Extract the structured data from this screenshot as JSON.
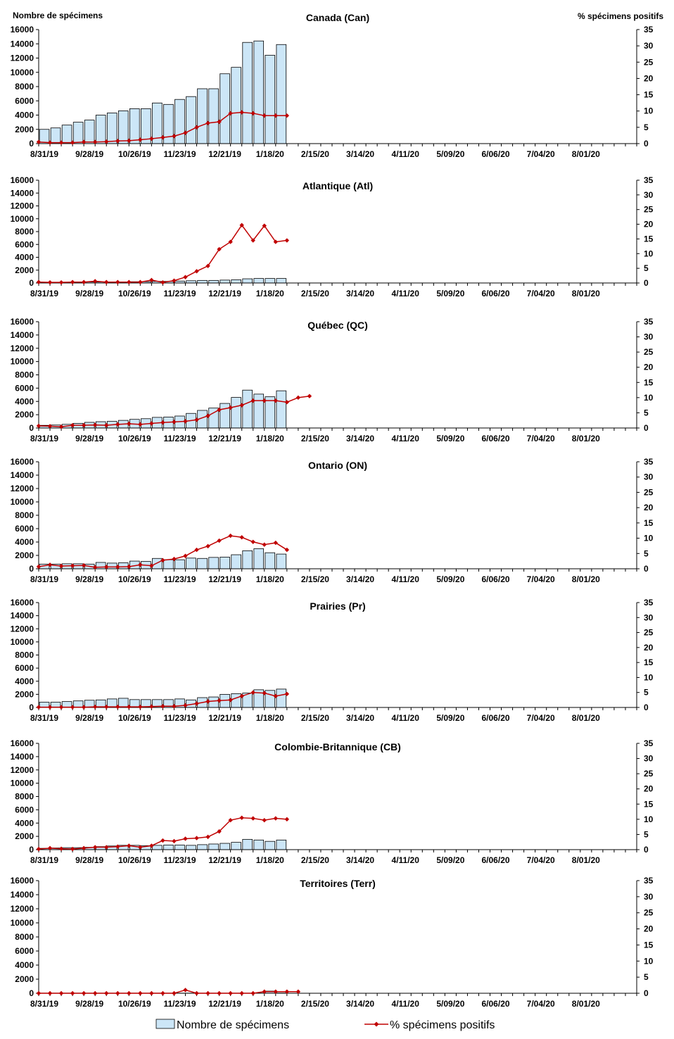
{
  "left_axis_label": "Nombre de spécimens",
  "right_axis_label": "% spécimens positifs",
  "legend": {
    "bars": "Nombre de spécimens",
    "line": "% spécimens positifs"
  },
  "colors": {
    "bar_fill": "#cce6f7",
    "bar_stroke": "#000000",
    "line": "#c00000",
    "axis": "#000000"
  },
  "x_tick_labels": [
    "8/31/19",
    "9/28/19",
    "10/26/19",
    "11/23/19",
    "12/21/19",
    "1/18/20",
    "2/15/20",
    "3/14/20",
    "4/11/20",
    "5/09/20",
    "6/06/20",
    "7/04/20",
    "8/01/20"
  ],
  "y_left_ticks": [
    0,
    2000,
    4000,
    6000,
    8000,
    10000,
    12000,
    14000,
    16000
  ],
  "y_right_ticks": [
    0,
    5,
    10,
    15,
    20,
    25,
    30,
    35
  ],
  "chart_data": [
    {
      "type": "bar+line",
      "title": "Canada (Can)",
      "weeks_total": 53,
      "ylim_left": [
        0,
        16000
      ],
      "ylim_right": [
        0,
        35
      ],
      "bars": [
        2000,
        2200,
        2600,
        3000,
        3300,
        4000,
        4300,
        4600,
        4900,
        4900,
        5700,
        5500,
        6200,
        6600,
        7700,
        7700,
        9800,
        10700,
        14200,
        14400,
        12400,
        13900
      ],
      "line": [
        0.5,
        0.3,
        0.3,
        0.3,
        0.5,
        0.5,
        0.6,
        0.8,
        0.9,
        1.2,
        1.5,
        1.9,
        2.3,
        3.3,
        5.0,
        6.3,
        6.7,
        9.3,
        9.6,
        9.3,
        8.6,
        8.6,
        8.6
      ]
    },
    {
      "type": "bar+line",
      "title": "Atlantique (Atl)",
      "weeks_total": 53,
      "ylim_left": [
        0,
        16000
      ],
      "ylim_right": [
        0,
        35
      ],
      "bars": [
        100,
        100,
        100,
        100,
        150,
        150,
        150,
        150,
        200,
        200,
        250,
        250,
        300,
        350,
        400,
        400,
        450,
        500,
        650,
        700,
        700,
        700
      ],
      "line": [
        0.3,
        0.2,
        0.2,
        0.3,
        0.3,
        0.6,
        0.3,
        0.3,
        0.3,
        0.3,
        1.0,
        0.2,
        0.8,
        2.0,
        4.0,
        5.8,
        11.5,
        14.0,
        19.7,
        14.5,
        19.5,
        14.0,
        14.5
      ]
    },
    {
      "type": "bar+line",
      "title": "Québec (QC)",
      "weeks_total": 53,
      "ylim_left": [
        0,
        16000
      ],
      "ylim_right": [
        0,
        35
      ],
      "bars": [
        400,
        450,
        550,
        700,
        850,
        950,
        1000,
        1150,
        1300,
        1400,
        1600,
        1650,
        1800,
        2200,
        2650,
        3000,
        3700,
        4600,
        5700,
        5100,
        4700,
        5600
      ],
      "line": [
        0.7,
        0.6,
        0.4,
        0.9,
        0.9,
        1.0,
        0.9,
        1.2,
        1.4,
        1.2,
        1.5,
        1.8,
        2.0,
        2.2,
        2.7,
        4.0,
        6.0,
        6.7,
        7.5,
        9.0,
        9.0,
        9.0,
        8.5,
        10.0,
        10.5
      ]
    },
    {
      "type": "bar+line",
      "title": "Ontario (ON)",
      "weeks_total": 53,
      "ylim_left": [
        0,
        16000
      ],
      "ylim_right": [
        0,
        35
      ],
      "bars": [
        700,
        700,
        750,
        750,
        700,
        950,
        850,
        900,
        1150,
        1100,
        1550,
        1350,
        1350,
        1600,
        1550,
        1700,
        1750,
        2100,
        2700,
        3000,
        2400,
        2200
      ],
      "line": [
        0.7,
        1.3,
        0.9,
        1.0,
        1.1,
        0.5,
        0.6,
        0.6,
        0.7,
        1.3,
        1.0,
        2.8,
        3.2,
        4.2,
        6.2,
        7.4,
        9.2,
        10.8,
        10.3,
        8.8,
        7.9,
        8.5,
        6.2
      ]
    },
    {
      "type": "bar+line",
      "title": "Prairies (Pr)",
      "weeks_total": 53,
      "ylim_left": [
        0,
        16000
      ],
      "ylim_right": [
        0,
        35
      ],
      "bars": [
        800,
        800,
        900,
        1000,
        1100,
        1150,
        1300,
        1400,
        1200,
        1200,
        1200,
        1200,
        1300,
        1150,
        1500,
        1600,
        2000,
        2100,
        2200,
        2700,
        2600,
        2800
      ],
      "line": [
        0.1,
        0.1,
        0.1,
        0.1,
        0.1,
        0.2,
        0.2,
        0.2,
        0.2,
        0.2,
        0.3,
        0.4,
        0.4,
        0.7,
        1.3,
        2.0,
        2.3,
        2.5,
        3.8,
        5.0,
        4.8,
        3.8,
        4.5
      ]
    },
    {
      "type": "bar+line",
      "title": "Colombie-Britannique (CB)",
      "weeks_total": 53,
      "ylim_left": [
        0,
        16000
      ],
      "ylim_right": [
        0,
        35
      ],
      "bars": [
        200,
        250,
        300,
        300,
        350,
        450,
        550,
        650,
        650,
        600,
        650,
        700,
        700,
        650,
        750,
        850,
        950,
        1100,
        1550,
        1450,
        1250,
        1450
      ],
      "line": [
        0.2,
        0.5,
        0.3,
        0.2,
        0.5,
        0.8,
        0.8,
        1.0,
        1.3,
        0.8,
        1.3,
        3.0,
        2.8,
        3.6,
        3.8,
        4.2,
        6.0,
        9.7,
        10.5,
        10.3,
        9.7,
        10.3,
        10.0
      ]
    },
    {
      "type": "bar+line",
      "title": "Territoires (Terr)",
      "weeks_total": 53,
      "ylim_left": [
        0,
        16000
      ],
      "ylim_right": [
        0,
        35
      ],
      "bars": [
        20,
        20,
        20,
        20,
        20,
        20,
        20,
        20,
        20,
        20,
        20,
        20,
        20,
        20,
        20,
        20,
        20,
        20,
        20,
        20,
        300,
        30
      ],
      "line": [
        0,
        0,
        0,
        0,
        0,
        0,
        0,
        0,
        0,
        0,
        0,
        0,
        0,
        1.0,
        0,
        0,
        0,
        0,
        0,
        0,
        0.5,
        0.5,
        0.5,
        0.5
      ]
    }
  ]
}
